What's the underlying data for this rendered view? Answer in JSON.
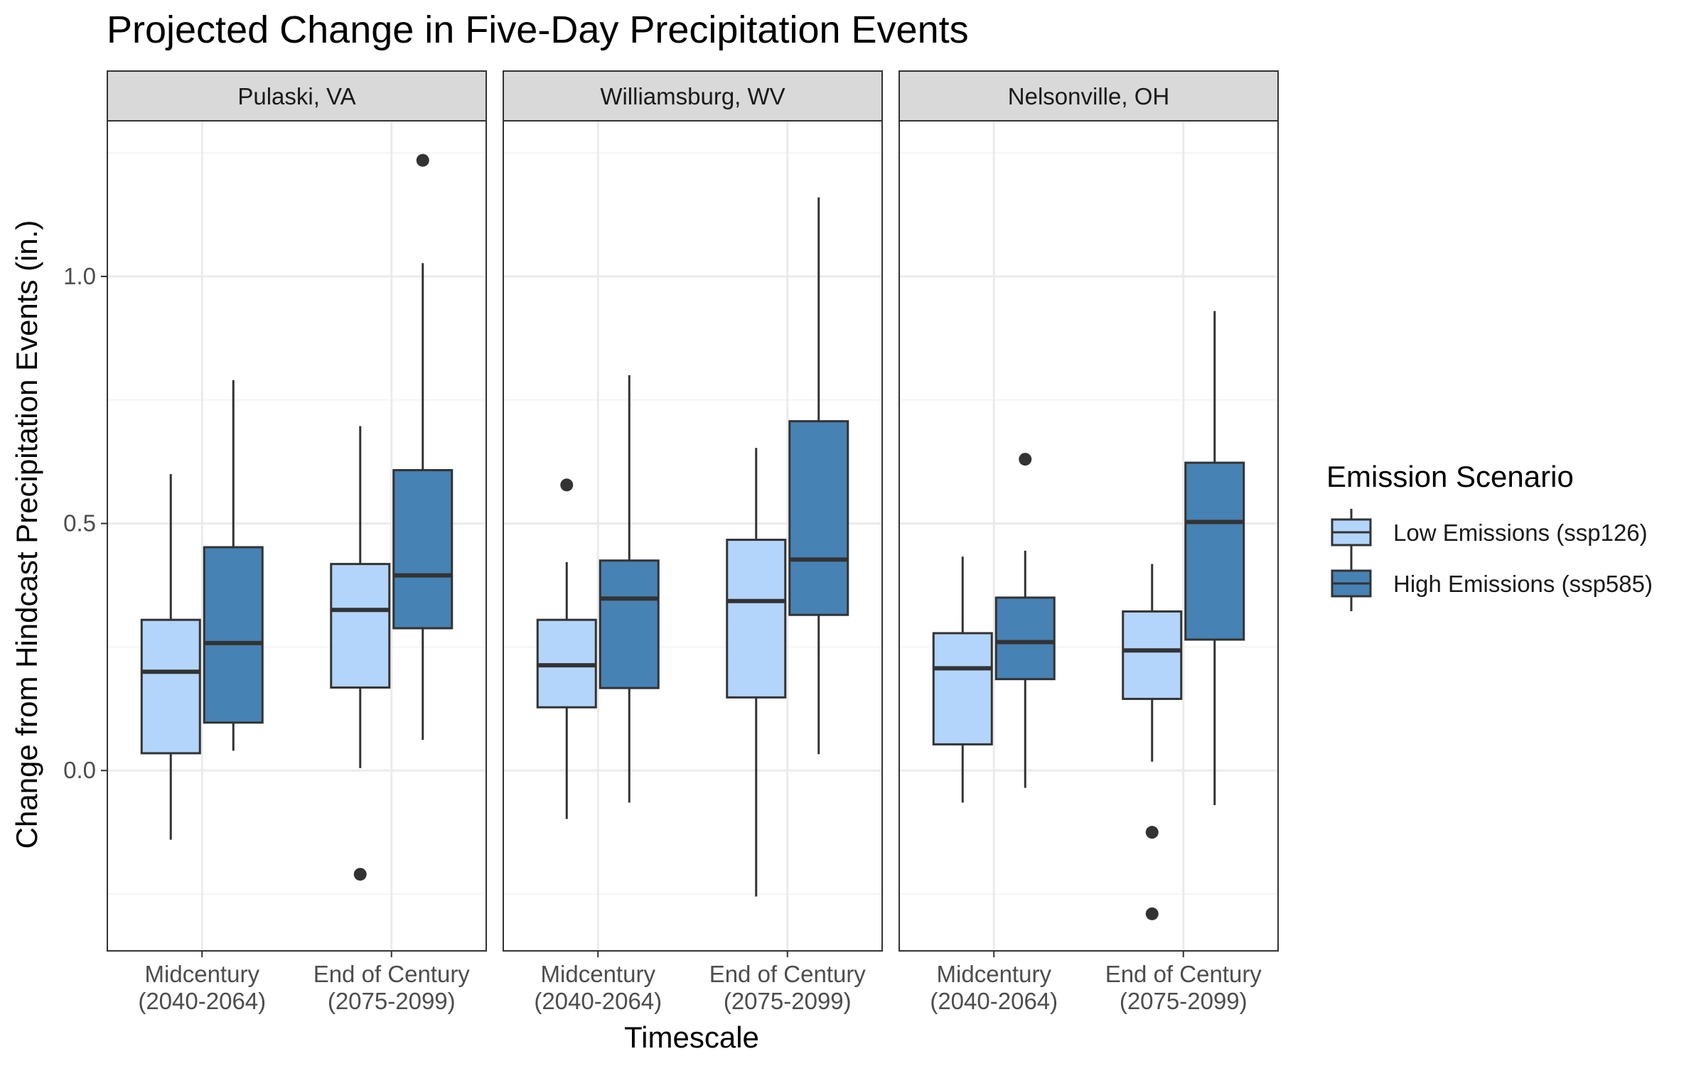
{
  "chart_data": {
    "type": "boxplot",
    "title": "Projected Change in Five-Day Precipitation Events",
    "xlabel": "Timescale",
    "ylabel": "Change from Hindcast Precipitation Events (in.)",
    "ylim": [
      -0.365,
      1.315
    ],
    "y_ticks": [
      0.0,
      0.5,
      1.0
    ],
    "y_tick_labels": [
      "0.0",
      "0.5",
      "1.0"
    ],
    "categories": [
      [
        "Midcentury",
        "(2040-2064)"
      ],
      [
        "End of Century",
        "(2075-2099)"
      ]
    ],
    "legend": {
      "title": "Emission Scenario",
      "position": "right",
      "entries": [
        {
          "label": "Low Emissions (ssp126)",
          "color": "#B3D5FC"
        },
        {
          "label": "High Emissions (ssp585)",
          "color": "#4682B4"
        }
      ]
    },
    "grid": true,
    "panels": [
      {
        "name": "Pulaski, VA",
        "boxes": [
          {
            "category": 0,
            "series": 0,
            "whisker_low": -0.14,
            "q1": 0.035,
            "median": 0.2,
            "q3": 0.305,
            "whisker_high": 0.6,
            "outliers": []
          },
          {
            "category": 0,
            "series": 1,
            "whisker_low": 0.04,
            "q1": 0.097,
            "median": 0.258,
            "q3": 0.452,
            "whisker_high": 0.79,
            "outliers": []
          },
          {
            "category": 1,
            "series": 0,
            "whisker_low": 0.005,
            "q1": 0.168,
            "median": 0.325,
            "q3": 0.418,
            "whisker_high": 0.697,
            "outliers": [
              -0.21
            ]
          },
          {
            "category": 1,
            "series": 1,
            "whisker_low": 0.062,
            "q1": 0.288,
            "median": 0.395,
            "q3": 0.608,
            "whisker_high": 1.027,
            "outliers": [
              1.235
            ]
          }
        ]
      },
      {
        "name": "Williamsburg, WV",
        "boxes": [
          {
            "category": 0,
            "series": 0,
            "whisker_low": -0.098,
            "q1": 0.128,
            "median": 0.213,
            "q3": 0.305,
            "whisker_high": 0.422,
            "outliers": [
              0.578
            ]
          },
          {
            "category": 0,
            "series": 1,
            "whisker_low": -0.065,
            "q1": 0.167,
            "median": 0.348,
            "q3": 0.425,
            "whisker_high": 0.8,
            "outliers": []
          },
          {
            "category": 1,
            "series": 0,
            "whisker_low": -0.255,
            "q1": 0.148,
            "median": 0.343,
            "q3": 0.467,
            "whisker_high": 0.653,
            "outliers": []
          },
          {
            "category": 1,
            "series": 1,
            "whisker_low": 0.033,
            "q1": 0.315,
            "median": 0.427,
            "q3": 0.707,
            "whisker_high": 1.16,
            "outliers": []
          }
        ]
      },
      {
        "name": "Nelsonville, OH",
        "boxes": [
          {
            "category": 0,
            "series": 0,
            "whisker_low": -0.065,
            "q1": 0.053,
            "median": 0.207,
            "q3": 0.278,
            "whisker_high": 0.433,
            "outliers": []
          },
          {
            "category": 0,
            "series": 1,
            "whisker_low": -0.035,
            "q1": 0.185,
            "median": 0.26,
            "q3": 0.35,
            "whisker_high": 0.445,
            "outliers": [
              0.63
            ]
          },
          {
            "category": 1,
            "series": 0,
            "whisker_low": 0.018,
            "q1": 0.145,
            "median": 0.243,
            "q3": 0.322,
            "whisker_high": 0.418,
            "outliers": [
              -0.125,
              -0.29
            ]
          },
          {
            "category": 1,
            "series": 1,
            "whisker_low": -0.07,
            "q1": 0.265,
            "median": 0.503,
            "q3": 0.623,
            "whisker_high": 0.93,
            "outliers": []
          }
        ]
      }
    ]
  }
}
